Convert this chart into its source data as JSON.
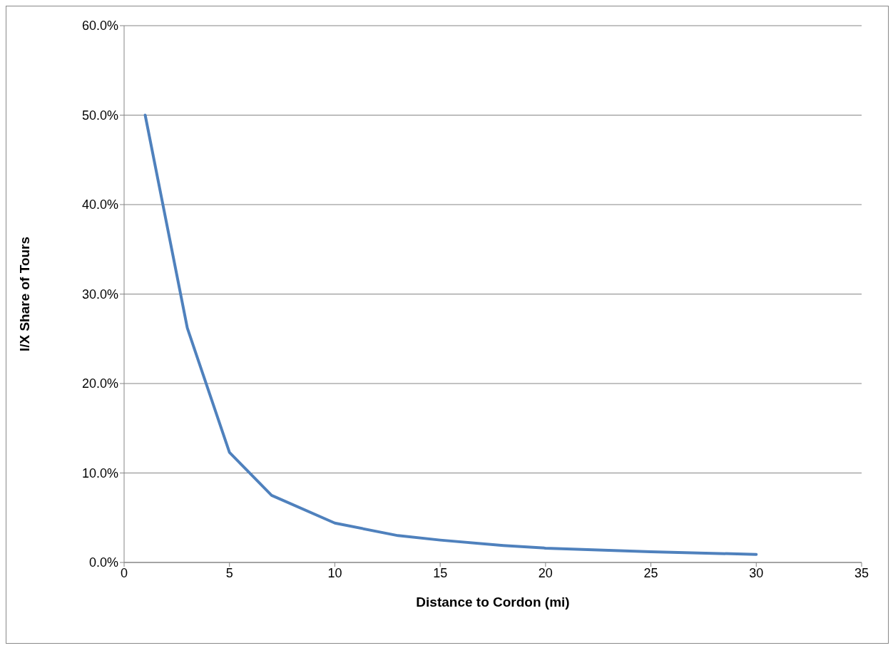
{
  "chart_data": {
    "type": "line",
    "xlabel": "Distance to Cordon (mi)",
    "ylabel": "I/X Share of Tours",
    "x": [
      1,
      3,
      5,
      7,
      10,
      13,
      15,
      18,
      20,
      25,
      30
    ],
    "series": [
      {
        "color": "#4f81bd",
        "values": [
          50,
          26.2,
          12.3,
          7.5,
          4.4,
          3.0,
          2.5,
          1.9,
          1.6,
          1.2,
          0.9
        ]
      }
    ],
    "xlim": [
      0,
      35
    ],
    "xticks": [
      0,
      5,
      10,
      15,
      20,
      25,
      30,
      35
    ],
    "ylim": [
      0,
      60
    ],
    "yticks": [
      {
        "value": 0,
        "label": "0.0%"
      },
      {
        "value": 10,
        "label": "10.0%"
      },
      {
        "value": 20,
        "label": "20.0%"
      },
      {
        "value": 30,
        "label": "30.0%"
      },
      {
        "value": 40,
        "label": "40.0%"
      },
      {
        "value": 50,
        "label": "50.0%"
      },
      {
        "value": 60,
        "label": "60.0%"
      }
    ],
    "grid": "y",
    "marker": "none",
    "line_style": "solid"
  }
}
